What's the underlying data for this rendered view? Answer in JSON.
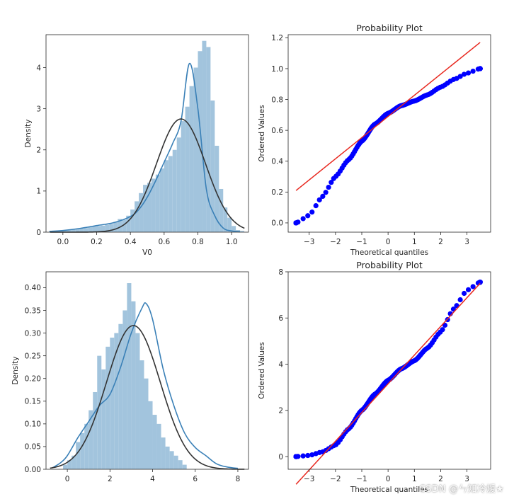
{
  "chart_data": [
    {
      "type": "histogram",
      "xlabel": "V0",
      "ylabel": "Density",
      "xlim": [
        -0.1,
        1.1
      ],
      "ylim": [
        0,
        4.8
      ],
      "xticks": [
        "0.0",
        "0.2",
        "0.4",
        "0.6",
        "0.8",
        "1.0"
      ],
      "yticks": [
        "0",
        "1",
        "2",
        "3",
        "4"
      ],
      "bins": {
        "start": -0.075,
        "width": 0.025,
        "heights": [
          0.02,
          0.02,
          0.03,
          0.04,
          0.05,
          0.06,
          0.08,
          0.09,
          0.1,
          0.12,
          0.14,
          0.15,
          0.16,
          0.18,
          0.2,
          0.25,
          0.32,
          0.3,
          0.4,
          0.55,
          0.75,
          0.95,
          1.15,
          1.2,
          1.3,
          1.4,
          1.55,
          1.75,
          1.85,
          2.0,
          2.3,
          2.7,
          3.05,
          3.55,
          4.0,
          4.4,
          4.65,
          4.5,
          3.2,
          2.1,
          1.05,
          0.6,
          0.35,
          0.15,
          0.05,
          0.03
        ]
      },
      "kde": {
        "x": [
          -0.08,
          0.0,
          0.1,
          0.2,
          0.3,
          0.4,
          0.45,
          0.5,
          0.55,
          0.6,
          0.65,
          0.7,
          0.75,
          0.8,
          0.85,
          0.9,
          0.95,
          1.0,
          1.05
        ],
        "y": [
          0.02,
          0.04,
          0.09,
          0.16,
          0.23,
          0.38,
          0.55,
          0.85,
          1.25,
          1.7,
          2.15,
          2.7,
          4.1,
          3.0,
          1.05,
          0.4,
          0.1,
          0.03,
          0.01
        ]
      },
      "normal_fit": {
        "mean": 0.7,
        "std": 0.145
      }
    },
    {
      "type": "scatter",
      "title": "Probability Plot",
      "xlabel": "Theoretical quantiles",
      "ylabel": "Ordered Values",
      "xlim": [
        -3.8,
        3.9
      ],
      "ylim": [
        -0.06,
        1.22
      ],
      "xticks": [
        "−3",
        "−2",
        "−1",
        "0",
        "1",
        "2",
        "3"
      ],
      "yticks": [
        "0.0",
        "0.2",
        "0.4",
        "0.6",
        "0.8",
        "1.0",
        "1.2"
      ],
      "quantile_curve": {
        "x": [
          -3.5,
          -3.0,
          -2.5,
          -2.0,
          -1.5,
          -1.0,
          -0.5,
          0.0,
          0.5,
          1.0,
          1.5,
          2.0,
          2.5,
          3.0,
          3.5
        ],
        "y": [
          0.0,
          0.05,
          0.17,
          0.3,
          0.41,
          0.53,
          0.64,
          0.71,
          0.76,
          0.79,
          0.83,
          0.88,
          0.93,
          0.97,
          1.0
        ]
      },
      "fit_line": {
        "x": [
          -3.5,
          3.5
        ],
        "y": [
          0.21,
          1.17
        ]
      }
    },
    {
      "type": "histogram",
      "xlabel": "",
      "ylabel": "Density",
      "xlim": [
        -1.0,
        8.5
      ],
      "ylim": [
        0,
        0.435
      ],
      "xticks": [
        "0",
        "2",
        "4",
        "6",
        "8"
      ],
      "yticks": [
        "0.00",
        "0.05",
        "0.10",
        "0.15",
        "0.20",
        "0.25",
        "0.30",
        "0.35",
        "0.40"
      ],
      "bins": {
        "start": -0.2,
        "width": 0.2,
        "heights": [
          0.01,
          0.02,
          0.03,
          0.06,
          0.08,
          0.1,
          0.13,
          0.17,
          0.25,
          0.22,
          0.27,
          0.29,
          0.3,
          0.32,
          0.35,
          0.41,
          0.37,
          0.3,
          0.24,
          0.2,
          0.15,
          0.12,
          0.1,
          0.07,
          0.05,
          0.04,
          0.03,
          0.02,
          0.01
        ]
      },
      "kde": {
        "x": [
          -0.7,
          -0.3,
          0.0,
          0.5,
          1.0,
          1.5,
          2.0,
          2.5,
          3.0,
          3.5,
          3.7,
          4.0,
          4.5,
          5.0,
          5.5,
          6.0,
          6.5,
          7.0,
          7.5,
          8.0
        ],
        "y": [
          0.003,
          0.015,
          0.03,
          0.07,
          0.105,
          0.14,
          0.165,
          0.225,
          0.3,
          0.355,
          0.365,
          0.33,
          0.22,
          0.14,
          0.08,
          0.048,
          0.03,
          0.012,
          0.005,
          0.002
        ]
      },
      "normal_fit": {
        "mean": 3.1,
        "std": 1.26
      }
    },
    {
      "type": "scatter",
      "title": "Probability Plot",
      "xlabel": "Theoretical quantiles",
      "ylabel": "Ordered Values",
      "xlim": [
        -3.8,
        3.9
      ],
      "ylim": [
        -0.55,
        8.0
      ],
      "xticks": [
        "−3",
        "−2",
        "−1",
        "0",
        "1",
        "2",
        "3"
      ],
      "yticks": [
        "0",
        "2",
        "4",
        "6",
        "8"
      ],
      "quantile_curve": {
        "x": [
          -3.5,
          -3.0,
          -2.5,
          -2.0,
          -1.5,
          -1.0,
          -0.5,
          0.0,
          0.5,
          1.0,
          1.5,
          2.0,
          2.5,
          3.0,
          3.5
        ],
        "y": [
          0.0,
          0.05,
          0.2,
          0.5,
          1.2,
          2.0,
          2.7,
          3.3,
          3.8,
          4.15,
          4.7,
          5.4,
          6.4,
          7.2,
          7.55
        ]
      },
      "fit_line": {
        "x": [
          -3.5,
          3.5
        ],
        "y": [
          -1.2,
          7.5
        ]
      }
    }
  ],
  "watermark": "CSDN @ㄣ知冷煖★"
}
